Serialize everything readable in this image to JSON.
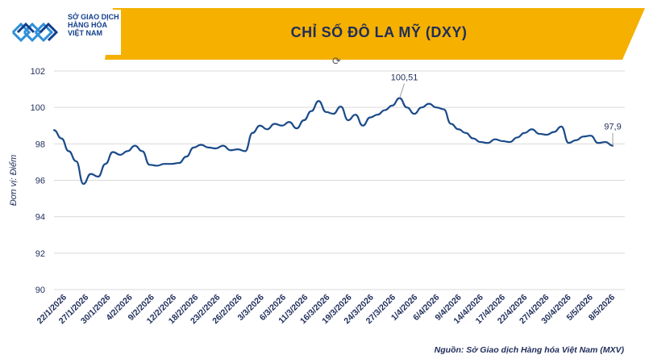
{
  "header": {
    "logo_lines": [
      "SỞ GIAO DỊCH",
      "HÀNG HÓA",
      "VIỆT NAM"
    ],
    "title": "CHỈ SỐ ĐÔ LA MỸ (DXY)",
    "banner_color": "#f5b000",
    "center_icon": "refresh-icon"
  },
  "source": "Nguồn: Sở Giao dịch Hàng hóa Việt Nam (MXV)",
  "chart_data": {
    "type": "line",
    "title": "CHỈ SỐ ĐÔ LA MỸ (DXY)",
    "ylabel": "Đơn vị: Điểm",
    "xlabel": "",
    "ylim": [
      90,
      102
    ],
    "yticks": [
      90,
      92,
      94,
      96,
      98,
      100,
      102
    ],
    "grid": true,
    "line_color": "#1a4a8a",
    "x_ticks": [
      "22/1/2026",
      "27/1/2026",
      "30/1/2026",
      "4/2/2026",
      "9/2/2026",
      "12/2/2026",
      "18/2/2026",
      "23/2/2026",
      "26/2/2026",
      "3/3/2026",
      "6/3/2026",
      "11/3/2026",
      "16/3/2026",
      "19/3/2026",
      "24/3/2026",
      "27/3/2026",
      "1/4/2026",
      "6/4/2026",
      "9/4/2026",
      "14/4/2026",
      "17/4/2026",
      "22/4/2026",
      "27/4/2026",
      "30/4/2026",
      "5/5/2026",
      "8/5/2026"
    ],
    "values": [
      98.75,
      98.3,
      97.6,
      97.05,
      95.8,
      96.35,
      96.2,
      96.9,
      97.55,
      97.4,
      97.6,
      97.9,
      97.6,
      96.85,
      96.8,
      96.9,
      96.9,
      96.95,
      97.3,
      97.8,
      97.95,
      97.8,
      97.75,
      97.9,
      97.65,
      97.7,
      97.6,
      98.6,
      99.0,
      98.8,
      99.1,
      99.0,
      99.2,
      98.85,
      99.3,
      99.8,
      100.35,
      99.75,
      99.65,
      100.05,
      99.3,
      99.6,
      99.0,
      99.45,
      99.6,
      99.85,
      100.1,
      100.51,
      100.0,
      99.65,
      100.0,
      100.2,
      100.0,
      99.9,
      99.1,
      98.8,
      98.6,
      98.3,
      98.1,
      98.05,
      98.25,
      98.15,
      98.1,
      98.35,
      98.6,
      98.8,
      98.55,
      98.5,
      98.65,
      98.95,
      98.05,
      98.2,
      98.4,
      98.45,
      98.05,
      98.1,
      97.9
    ],
    "annotations": [
      {
        "text": "100,51",
        "index": 47,
        "value": 100.51
      },
      {
        "text": "97,9",
        "index": 76,
        "value": 97.9
      }
    ]
  }
}
